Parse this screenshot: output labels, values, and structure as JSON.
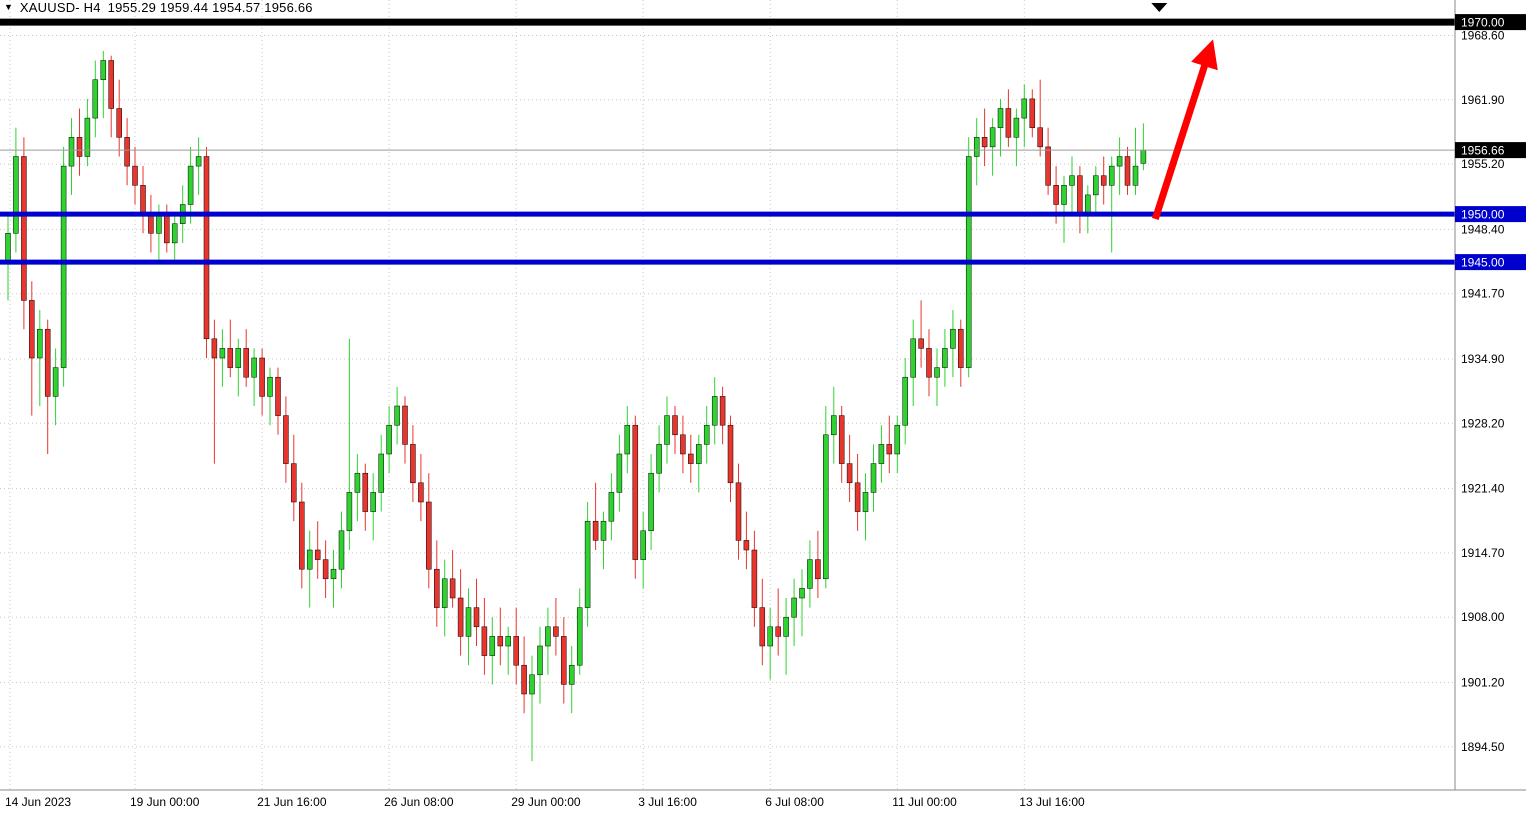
{
  "header": {
    "marker": "▼",
    "symbol_timeframe": "XAUUSD- H4",
    "ohlc_values": "1955.29 1959.44 1954.57 1956.66"
  },
  "colors": {
    "background": "#ffffff",
    "up": "#2fd32f",
    "down": "#e8352e",
    "outline": "#000000",
    "grid": "#c9c9c9",
    "bid_line": "#9a9a9a",
    "separator": "#8a8a8a",
    "axis_text": "#000000",
    "label_text": "#ffffff",
    "blue_level": "#0000cd",
    "black_level": "#000000",
    "arrow": "#ff0000"
  },
  "chart_data": {
    "type": "candlestick",
    "symbol": "XAUUSD",
    "timeframe": "H4",
    "title": "XAUUSD- H4 1955.29 1959.44 1954.57 1956.66",
    "current_bar_ohlc": {
      "open": 1955.29,
      "high": 1959.44,
      "low": 1954.57,
      "close": 1956.66
    },
    "current_price": {
      "value": 1956.66,
      "label": "1956.66"
    },
    "ylim": [
      1890.0,
      1972.3
    ],
    "grid": true,
    "y_axis": {
      "ticks": [
        {
          "label": "1968.60",
          "value": 1968.6
        },
        {
          "label": "1961.90",
          "value": 1961.9
        },
        {
          "label": "1955.20",
          "value": 1955.2
        },
        {
          "label": "1948.40",
          "value": 1948.4
        },
        {
          "label": "1941.70",
          "value": 1941.7
        },
        {
          "label": "1934.90",
          "value": 1934.9
        },
        {
          "label": "1928.20",
          "value": 1928.2
        },
        {
          "label": "1921.40",
          "value": 1921.4
        },
        {
          "label": "1914.70",
          "value": 1914.7
        },
        {
          "label": "1908.00",
          "value": 1908.0
        },
        {
          "label": "1901.20",
          "value": 1901.2
        },
        {
          "label": "1894.50",
          "value": 1894.5
        }
      ]
    },
    "x_axis": {
      "labels": [
        {
          "text": "14 Jun 2023",
          "bar": 0.25
        },
        {
          "text": "19 Jun 00:00",
          "bar": 16
        },
        {
          "text": "21 Jun 16:00",
          "bar": 32
        },
        {
          "text": "26 Jun 08:00",
          "bar": 48
        },
        {
          "text": "29 Jun 00:00",
          "bar": 64
        },
        {
          "text": "3 Jul 16:00",
          "bar": 80
        },
        {
          "text": "6 Jul 08:00",
          "bar": 96
        },
        {
          "text": "11 Jul 00:00",
          "bar": 112
        },
        {
          "text": "13 Jul 16:00",
          "bar": 128
        }
      ]
    },
    "horizontal_lines": [
      {
        "price": 1970.0,
        "label": "1970.00",
        "color": "#000000",
        "width": 7
      },
      {
        "price": 1950.0,
        "label": "1950.00",
        "color": "#0000cd",
        "width": 5
      },
      {
        "price": 1945.0,
        "label": "1945.00",
        "color": "#0000cd",
        "width": 5
      }
    ],
    "arrow_annotation": {
      "from": {
        "bar": 144.5,
        "price": 1949.5
      },
      "to": {
        "bar": 151.5,
        "price": 1967.5
      },
      "color": "#ff0000"
    },
    "top_marker": {
      "bar": 145,
      "symbol": "▼"
    },
    "candles": [
      [
        1945,
        1950,
        1941,
        1948
      ],
      [
        1948,
        1959,
        1946,
        1956
      ],
      [
        1956,
        1958,
        1938,
        1941
      ],
      [
        1941,
        1943,
        1929,
        1935
      ],
      [
        1935,
        1940,
        1930,
        1938
      ],
      [
        1938,
        1939,
        1925,
        1931
      ],
      [
        1931,
        1936,
        1928,
        1934
      ],
      [
        1934,
        1957,
        1932,
        1955
      ],
      [
        1955,
        1960,
        1952,
        1958
      ],
      [
        1958,
        1961,
        1954,
        1956
      ],
      [
        1956,
        1962,
        1955,
        1960
      ],
      [
        1960,
        1966,
        1958,
        1964
      ],
      [
        1964,
        1967,
        1960,
        1966
      ],
      [
        1966,
        1966.5,
        1958,
        1961
      ],
      [
        1961,
        1964,
        1956,
        1958
      ],
      [
        1958,
        1960,
        1953,
        1955
      ],
      [
        1955,
        1957,
        1951,
        1953
      ],
      [
        1953,
        1955,
        1948,
        1950
      ],
      [
        1950,
        1952,
        1946,
        1948
      ],
      [
        1948,
        1951,
        1945,
        1950
      ],
      [
        1950,
        1951,
        1946,
        1947
      ],
      [
        1947,
        1950,
        1945,
        1949
      ],
      [
        1949,
        1953,
        1947,
        1951
      ],
      [
        1951,
        1957,
        1949,
        1955
      ],
      [
        1955,
        1958,
        1952,
        1956
      ],
      [
        1956,
        1957,
        1935,
        1937
      ],
      [
        1937,
        1939,
        1924,
        1935
      ],
      [
        1935,
        1938,
        1932,
        1936
      ],
      [
        1936,
        1939,
        1933,
        1934
      ],
      [
        1934,
        1937,
        1931,
        1936
      ],
      [
        1936,
        1938,
        1932,
        1933
      ],
      [
        1933,
        1936,
        1930,
        1935
      ],
      [
        1935,
        1936,
        1929,
        1931
      ],
      [
        1931,
        1934,
        1928,
        1933
      ],
      [
        1933,
        1934,
        1927,
        1929
      ],
      [
        1929,
        1931,
        1922,
        1924
      ],
      [
        1924,
        1927,
        1918,
        1920
      ],
      [
        1920,
        1922,
        1911,
        1913
      ],
      [
        1913,
        1917,
        1909,
        1915
      ],
      [
        1915,
        1918,
        1912,
        1914
      ],
      [
        1914,
        1916,
        1910,
        1912
      ],
      [
        1912,
        1915,
        1909,
        1913
      ],
      [
        1913,
        1919,
        1911,
        1917
      ],
      [
        1917,
        1937,
        1915,
        1921
      ],
      [
        1921,
        1925,
        1918,
        1923
      ],
      [
        1923,
        1924,
        1917,
        1919
      ],
      [
        1919,
        1923,
        1916,
        1921
      ],
      [
        1921,
        1927,
        1919,
        1925
      ],
      [
        1925,
        1930,
        1923,
        1928
      ],
      [
        1928,
        1932,
        1926,
        1930
      ],
      [
        1930,
        1931,
        1924,
        1926
      ],
      [
        1926,
        1928,
        1920,
        1922
      ],
      [
        1922,
        1925,
        1918,
        1920
      ],
      [
        1920,
        1923,
        1911,
        1913
      ],
      [
        1913,
        1916,
        1907,
        1909
      ],
      [
        1909,
        1914,
        1906,
        1912
      ],
      [
        1912,
        1915,
        1909,
        1910
      ],
      [
        1910,
        1913,
        1904,
        1906
      ],
      [
        1906,
        1911,
        1903,
        1909
      ],
      [
        1909,
        1912,
        1905,
        1907
      ],
      [
        1907,
        1910,
        1902,
        1904
      ],
      [
        1904,
        1908,
        1901,
        1906
      ],
      [
        1906,
        1909,
        1903,
        1905
      ],
      [
        1905,
        1907,
        1902,
        1906
      ],
      [
        1906,
        1909,
        1901,
        1903
      ],
      [
        1903,
        1906,
        1898,
        1900
      ],
      [
        1900,
        1904,
        1893,
        1902
      ],
      [
        1902,
        1907,
        1899,
        1905
      ],
      [
        1905,
        1909,
        1902,
        1907
      ],
      [
        1907,
        1910,
        1904,
        1906
      ],
      [
        1906,
        1908,
        1899,
        1901
      ],
      [
        1901,
        1905,
        1898,
        1903
      ],
      [
        1903,
        1911,
        1902,
        1909
      ],
      [
        1909,
        1920,
        1907,
        1918
      ],
      [
        1918,
        1922,
        1915,
        1916
      ],
      [
        1916,
        1919,
        1913,
        1918
      ],
      [
        1918,
        1923,
        1916,
        1921
      ],
      [
        1921,
        1927,
        1919,
        1925
      ],
      [
        1925,
        1930,
        1923,
        1928
      ],
      [
        1928,
        1929,
        1912,
        1914
      ],
      [
        1914,
        1919,
        1911,
        1917
      ],
      [
        1917,
        1925,
        1915,
        1923
      ],
      [
        1923,
        1928,
        1921,
        1926
      ],
      [
        1926,
        1931,
        1924,
        1929
      ],
      [
        1929,
        1930,
        1925,
        1927
      ],
      [
        1927,
        1929,
        1923,
        1925
      ],
      [
        1925,
        1927,
        1922,
        1924
      ],
      [
        1924,
        1927,
        1921,
        1926
      ],
      [
        1926,
        1930,
        1924,
        1928
      ],
      [
        1928,
        1933,
        1926,
        1931
      ],
      [
        1931,
        1932,
        1926,
        1928
      ],
      [
        1928,
        1929,
        1920,
        1922
      ],
      [
        1922,
        1924,
        1914,
        1916
      ],
      [
        1916,
        1919,
        1913,
        1915
      ],
      [
        1915,
        1917,
        1907,
        1909
      ],
      [
        1909,
        1912,
        1903,
        1905
      ],
      [
        1905,
        1909,
        1901.5,
        1907
      ],
      [
        1907,
        1911,
        1904,
        1906
      ],
      [
        1906,
        1910,
        1902,
        1908
      ],
      [
        1908,
        1912,
        1905,
        1910
      ],
      [
        1910,
        1913,
        1906,
        1911
      ],
      [
        1911,
        1916,
        1909,
        1914
      ],
      [
        1914,
        1917,
        1910,
        1912
      ],
      [
        1912,
        1930,
        1911,
        1927
      ],
      [
        1927,
        1932,
        1924,
        1929
      ],
      [
        1929,
        1930,
        1922,
        1924
      ],
      [
        1924,
        1927,
        1920,
        1922
      ],
      [
        1922,
        1925,
        1917,
        1919
      ],
      [
        1919,
        1923,
        1916,
        1921
      ],
      [
        1921,
        1926,
        1919,
        1924
      ],
      [
        1924,
        1928,
        1922,
        1926
      ],
      [
        1926,
        1929,
        1923,
        1925
      ],
      [
        1925,
        1929,
        1923,
        1928
      ],
      [
        1928,
        1935,
        1926,
        1933
      ],
      [
        1933,
        1939,
        1930,
        1937
      ],
      [
        1937,
        1941,
        1934,
        1936
      ],
      [
        1936,
        1938,
        1931,
        1933
      ],
      [
        1933,
        1936,
        1930,
        1934
      ],
      [
        1934,
        1938,
        1932,
        1936
      ],
      [
        1936,
        1940,
        1933,
        1938
      ],
      [
        1938,
        1939,
        1932,
        1934
      ],
      [
        1934,
        1958,
        1933,
        1956
      ],
      [
        1956,
        1960,
        1953,
        1958
      ],
      [
        1958,
        1961,
        1955,
        1957
      ],
      [
        1957,
        1960,
        1954,
        1959
      ],
      [
        1959,
        1962,
        1956,
        1961
      ],
      [
        1961,
        1963,
        1957,
        1958
      ],
      [
        1958,
        1961,
        1955,
        1960
      ],
      [
        1960,
        1963.5,
        1957,
        1962
      ],
      [
        1962,
        1963,
        1958,
        1959
      ],
      [
        1959,
        1964,
        1956,
        1957
      ],
      [
        1957,
        1959,
        1952,
        1953
      ],
      [
        1953,
        1955,
        1949,
        1951
      ],
      [
        1951,
        1954,
        1947,
        1953
      ],
      [
        1953,
        1956,
        1950,
        1954
      ],
      [
        1954,
        1955,
        1948,
        1950
      ],
      [
        1950,
        1953,
        1948,
        1952
      ],
      [
        1952,
        1955,
        1950,
        1954
      ],
      [
        1954,
        1956,
        1951,
        1953
      ],
      [
        1953,
        1956,
        1946,
        1955
      ],
      [
        1955,
        1958,
        1952,
        1956
      ],
      [
        1956,
        1957,
        1952,
        1953
      ],
      [
        1953,
        1959,
        1952,
        1955
      ],
      [
        1955.29,
        1959.44,
        1954.57,
        1956.66
      ]
    ]
  }
}
